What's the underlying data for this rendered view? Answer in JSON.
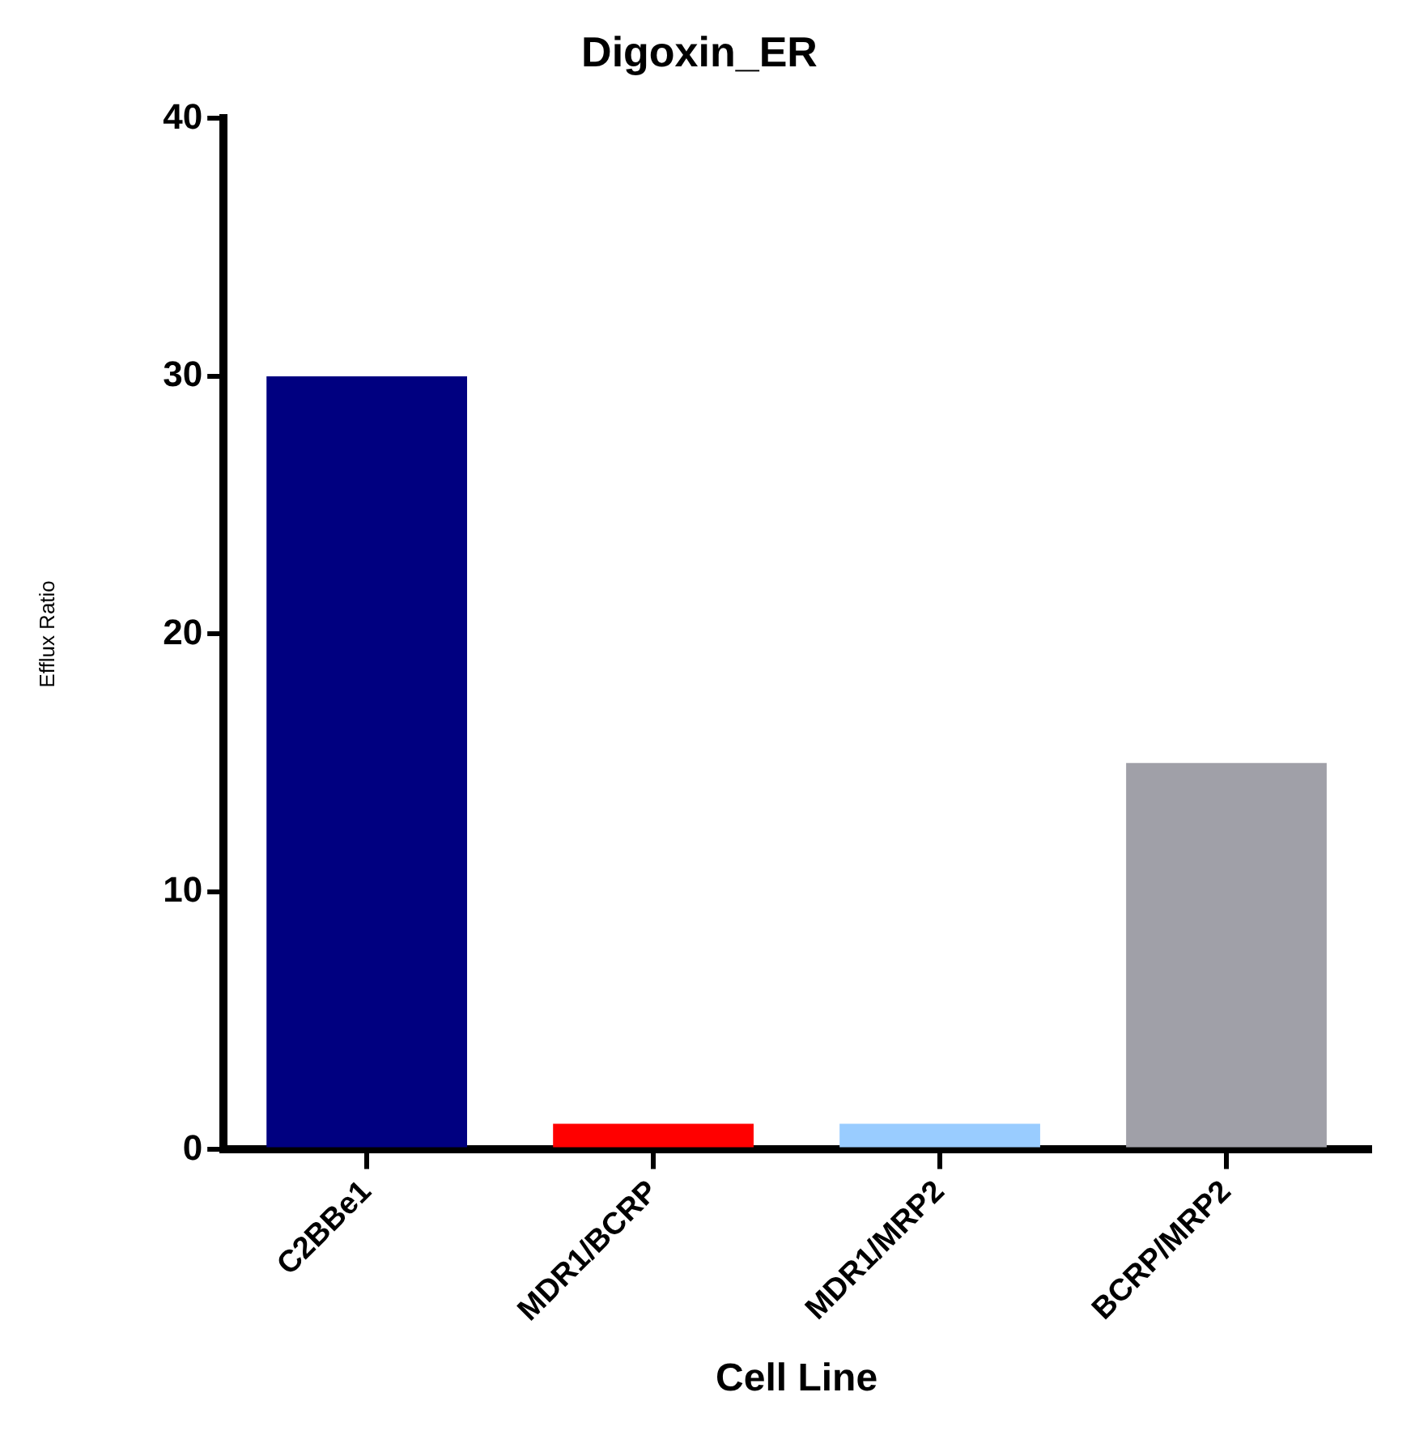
{
  "chart_data": {
    "type": "bar",
    "title": "Digoxin_ER",
    "xlabel": "Cell Line",
    "ylabel": "Efflux Ratio",
    "categories": [
      "C2BBe1",
      "MDR1/BCRP",
      "MDR1/MRP2",
      "BCRP/MRP2"
    ],
    "values": [
      30,
      1,
      1,
      15
    ],
    "colors": [
      "#000080",
      "#ff0000",
      "#99ccff",
      "#a0a0a8"
    ],
    "ylim": [
      0,
      40
    ],
    "yticks": [
      0,
      10,
      20,
      30,
      40
    ],
    "grid": false,
    "legend": false
  }
}
